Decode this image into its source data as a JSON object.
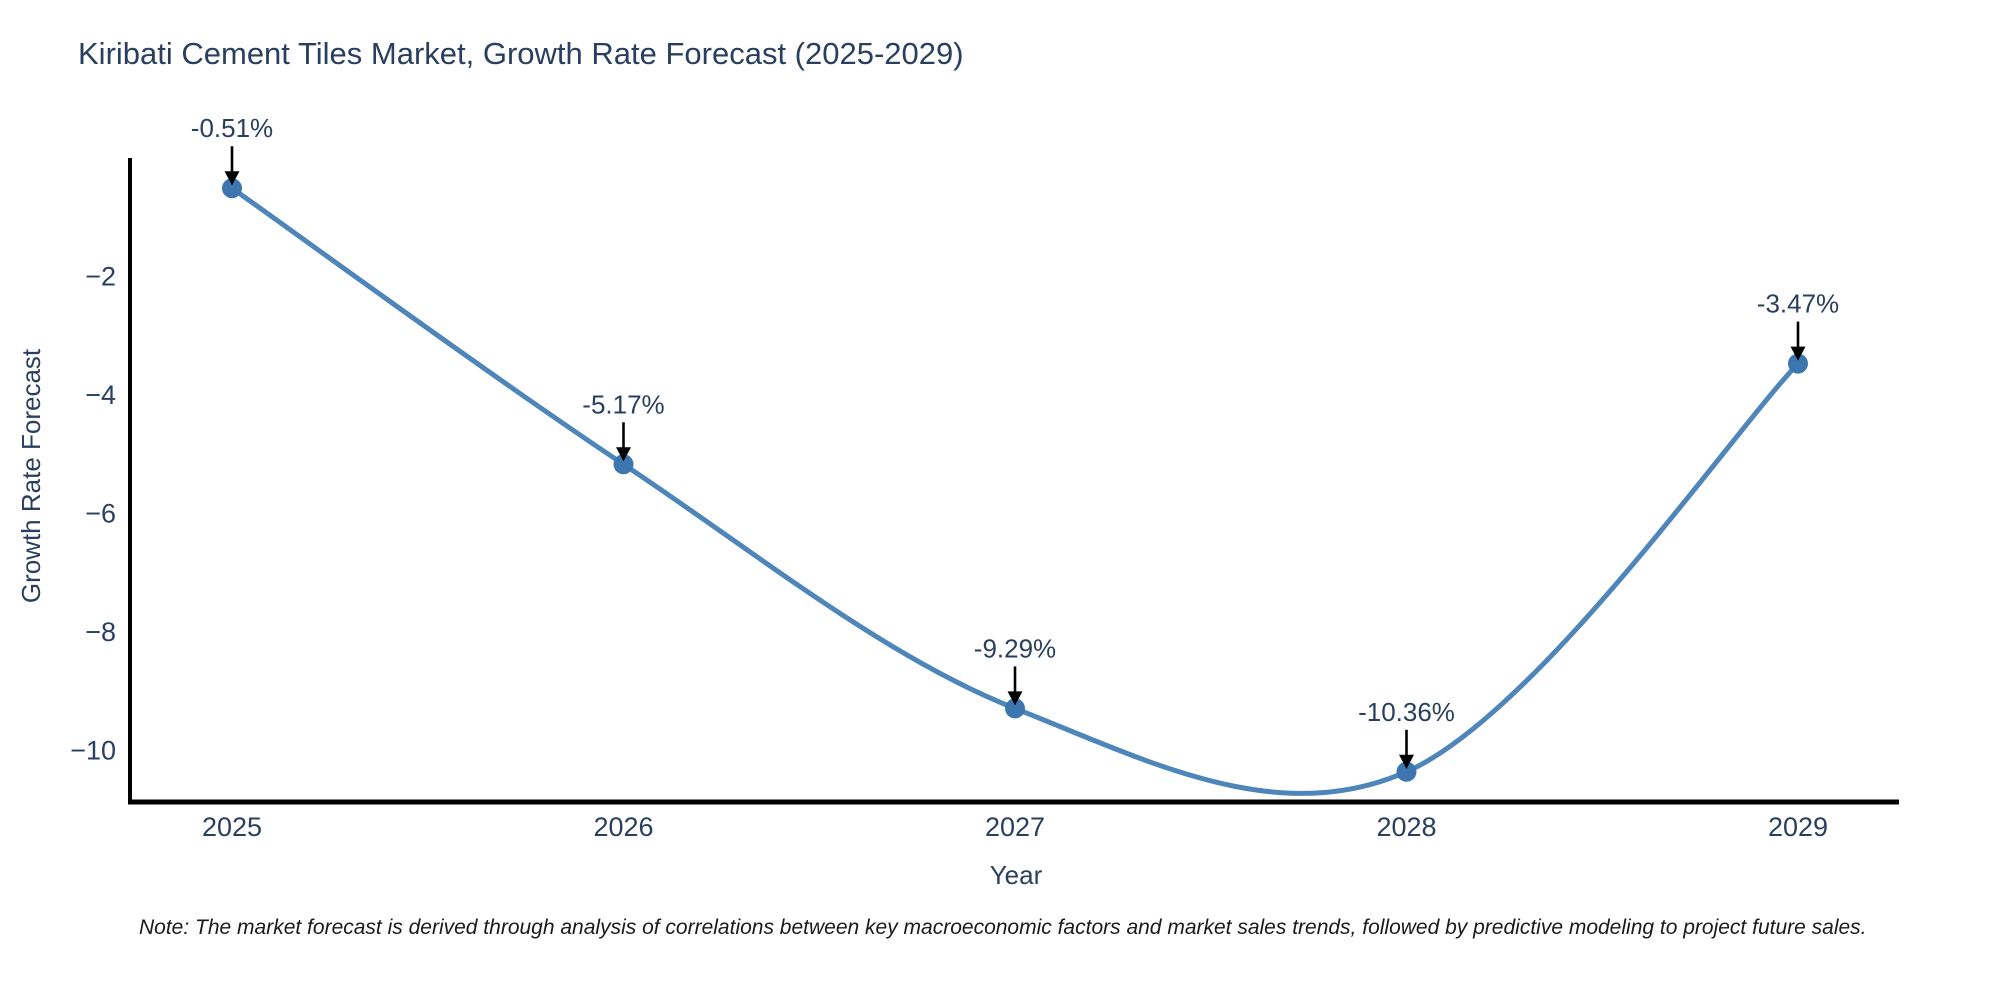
{
  "chart_data": {
    "type": "line",
    "line_shape": "spline",
    "title": "Kiribati Cement Tiles Market, Growth Rate Forecast (2025-2029)",
    "xlabel": "Year",
    "ylabel": "Growth Rate Forecast",
    "x": [
      "2025",
      "2026",
      "2027",
      "2028",
      "2029"
    ],
    "series": [
      {
        "name": "Growth Rate Forecast",
        "values": [
          -0.51,
          -5.17,
          -9.29,
          -10.36,
          -3.47
        ]
      }
    ],
    "annotations": [
      "-0.51%",
      "-5.17%",
      "-9.29%",
      "-10.36%",
      "-3.47%"
    ],
    "yticks": [
      {
        "value": -2,
        "label": "−2"
      },
      {
        "value": -4,
        "label": "−4"
      },
      {
        "value": -6,
        "label": "−6"
      },
      {
        "value": -8,
        "label": "−8"
      },
      {
        "value": -10,
        "label": "−10"
      }
    ],
    "ylim": [
      -10.87,
      0
    ],
    "grid": false,
    "legend": "none",
    "note": "Note: The market forecast is derived through analysis of correlations between key macroeconomic factors and market sales trends, followed by predictive modeling to project future sales.",
    "colors": {
      "line": "#4e86ba",
      "marker": "#3d76ae",
      "text": "#2a3f5f",
      "axis": "#000000",
      "arrow": "#000000",
      "note_text": "#1a1a1a",
      "background": "#ffffff"
    }
  }
}
